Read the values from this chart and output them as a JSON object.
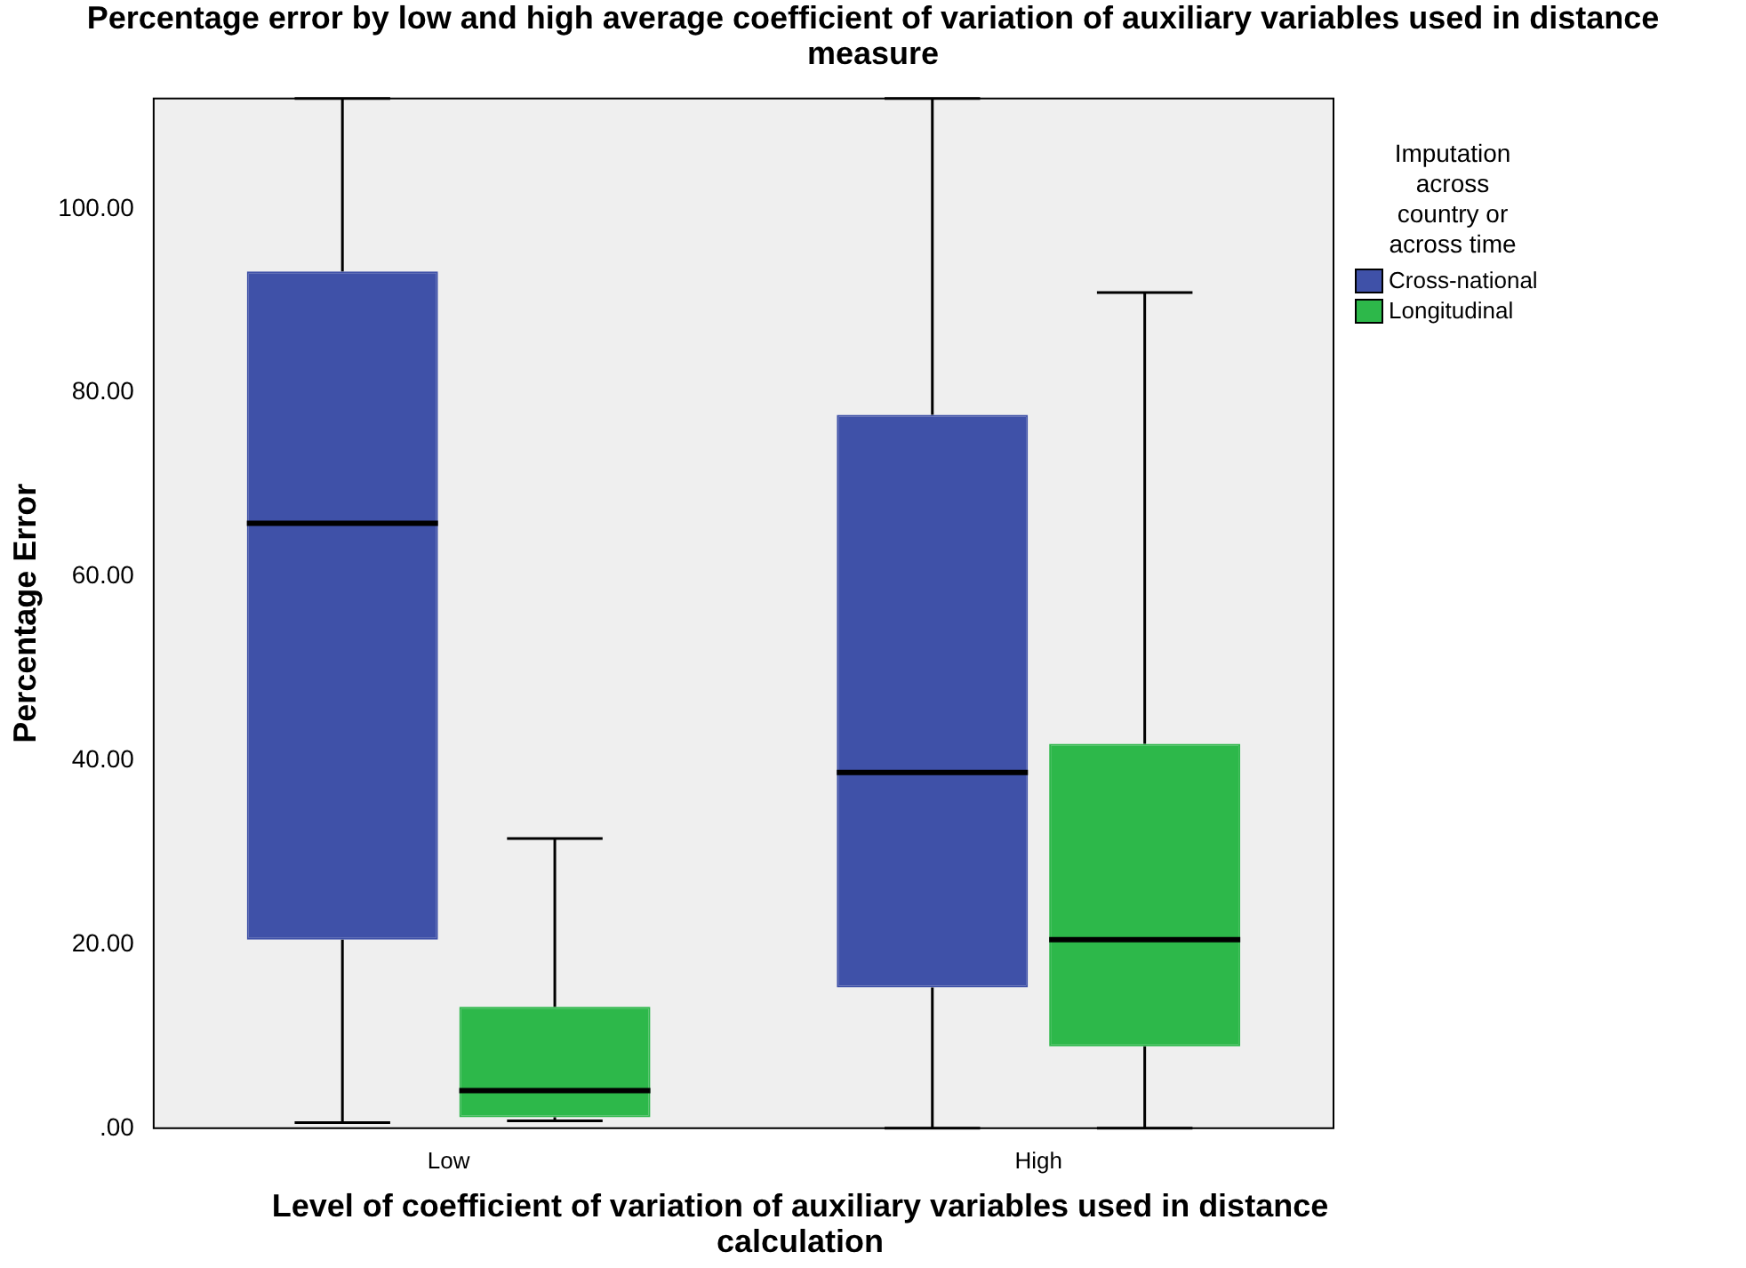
{
  "chart_data": {
    "type": "box",
    "title": "Percentage error by low and high average coefficient of variation of auxiliary variables used in distance measure",
    "xlabel": "Level of coefficient of variation of auxiliary variables used in distance calculation",
    "ylabel": "Percentage Error",
    "legend_title": "Imputation across country or across time",
    "legend": "top right",
    "grid": false,
    "categories": [
      "Low",
      "High"
    ],
    "ylim": [
      0,
      112
    ],
    "yticks": [
      {
        "value": 0,
        "label": ".00"
      },
      {
        "value": 20,
        "label": "20.00"
      },
      {
        "value": 40,
        "label": "40.00"
      },
      {
        "value": 60,
        "label": "60.00"
      },
      {
        "value": 80,
        "label": "80.00"
      },
      {
        "value": 100,
        "label": "100.00"
      }
    ],
    "series": [
      {
        "name": "Cross-national",
        "color": "#3f51a8",
        "boxes": [
          {
            "low": 0.6,
            "q1": 20.5,
            "median": 65.8,
            "q3": 93.2,
            "high": 112
          },
          {
            "low": 0,
            "q1": 15.3,
            "median": 38.7,
            "q3": 77.6,
            "high": 112
          }
        ]
      },
      {
        "name": "Longitudinal",
        "color": "#2db84a",
        "boxes": [
          {
            "low": 0.8,
            "q1": 1.2,
            "median": 4.1,
            "q3": 13.2,
            "high": 31.5
          },
          {
            "low": 0,
            "q1": 8.9,
            "median": 20.5,
            "q3": 41.8,
            "high": 90.9
          }
        ]
      }
    ]
  }
}
